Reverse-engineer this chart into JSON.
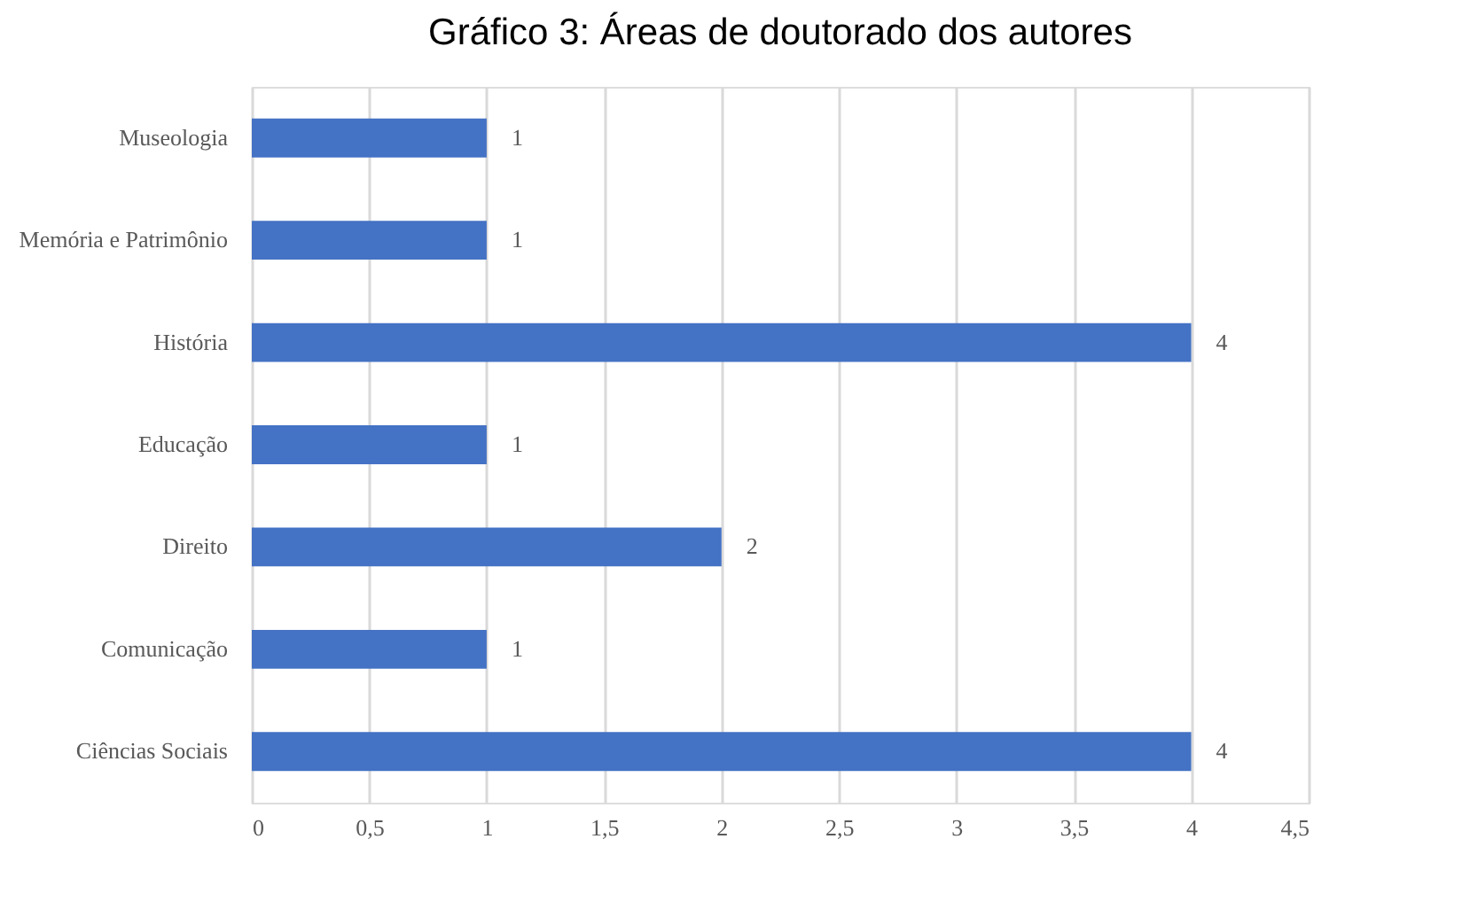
{
  "chart_data": {
    "type": "bar",
    "orientation": "horizontal",
    "title": "Gráfico 3: Áreas de doutorado dos autores",
    "categories": [
      "Museologia",
      "Memória e Patrimônio",
      "História",
      "Educação",
      "Direito",
      "Comunicação",
      "Ciências Sociais"
    ],
    "values": [
      1,
      1,
      4,
      1,
      2,
      1,
      4
    ],
    "color": "#4472c4",
    "xlim": [
      0,
      4.5
    ],
    "xticks": [
      0,
      {
        "value": 0.5,
        "label": "0,5"
      },
      1,
      {
        "value": 1.5,
        "label": "1,5"
      },
      2,
      {
        "value": 2.5,
        "label": "2,5"
      },
      3,
      {
        "value": 3.5,
        "label": "3,5"
      },
      4,
      {
        "value": 4.5,
        "label": "4,5"
      }
    ],
    "grid": "x",
    "data_labels": true
  }
}
